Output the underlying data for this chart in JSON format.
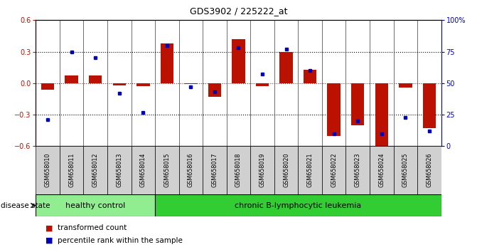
{
  "title": "GDS3902 / 225222_at",
  "samples": [
    "GSM658010",
    "GSM658011",
    "GSM658012",
    "GSM658013",
    "GSM658014",
    "GSM658015",
    "GSM658016",
    "GSM658017",
    "GSM658018",
    "GSM658019",
    "GSM658020",
    "GSM658021",
    "GSM658022",
    "GSM658023",
    "GSM658024",
    "GSM658025",
    "GSM658026"
  ],
  "red_values": [
    -0.06,
    0.07,
    0.07,
    -0.02,
    -0.03,
    0.38,
    -0.01,
    -0.13,
    0.42,
    -0.03,
    0.3,
    0.13,
    -0.5,
    -0.4,
    -0.62,
    -0.04,
    -0.43
  ],
  "blue_values_pct": [
    21,
    75,
    70,
    42,
    27,
    80,
    47,
    43,
    78,
    57,
    77,
    60,
    10,
    20,
    10,
    23,
    12
  ],
  "group_labels": [
    "healthy control",
    "chronic B-lymphocytic leukemia"
  ],
  "hc_count": 5,
  "group_color_hc": "#90ee90",
  "group_color_cll": "#32cd32",
  "ylim_left": [
    -0.6,
    0.6
  ],
  "ylim_right": [
    0,
    100
  ],
  "yticks_left": [
    -0.6,
    -0.3,
    0.0,
    0.3,
    0.6
  ],
  "yticks_right": [
    0,
    25,
    50,
    75,
    100
  ],
  "hline_dotted": [
    0.3,
    -0.3
  ],
  "hline_red": 0.0,
  "red_color": "#bb1100",
  "blue_color": "#0000bb",
  "bar_width": 0.55,
  "label_box_color": "#d0d0d0",
  "disease_state_label": "disease state",
  "legend_red": "transformed count",
  "legend_blue": "percentile rank within the sample",
  "title_fontsize": 9,
  "tick_fontsize": 7,
  "label_fontsize": 5.8,
  "group_fontsize": 8
}
